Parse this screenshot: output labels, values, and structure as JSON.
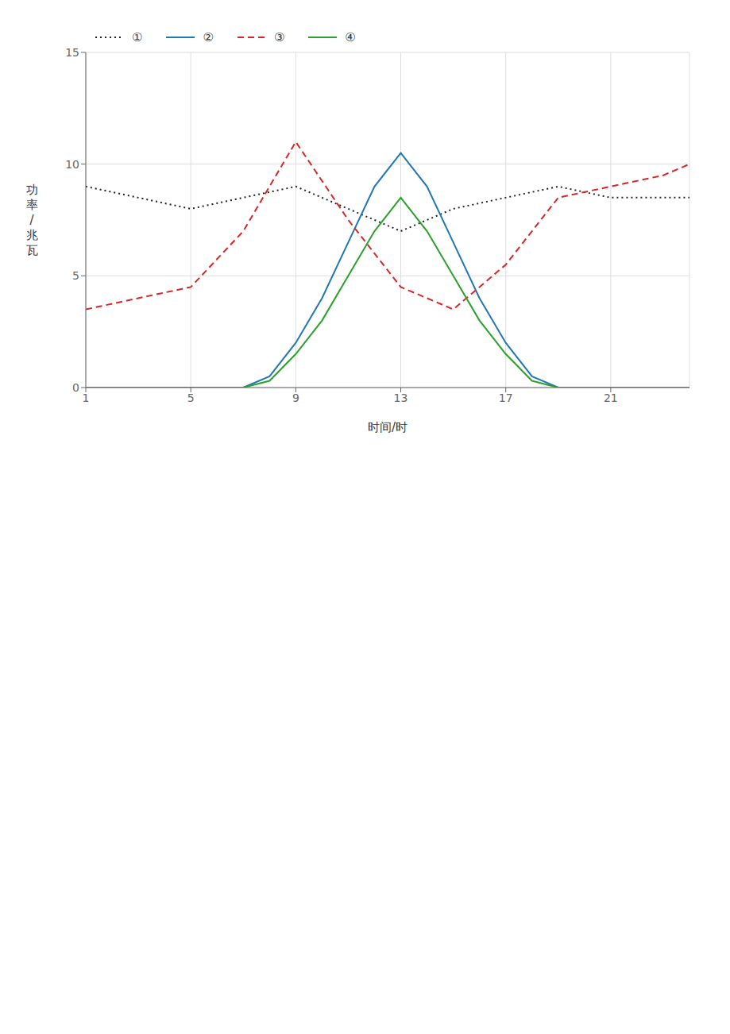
{
  "chart_data": {
    "type": "line",
    "xlabel": "时间/时",
    "ylabel": "功\n率\n/\n兆\n瓦",
    "xlim": [
      1,
      24
    ],
    "xticks": [
      1,
      5,
      9,
      13,
      17,
      21
    ],
    "ylim": [
      0,
      15
    ],
    "yticks": [
      0,
      5,
      10,
      15
    ],
    "grid": true,
    "legend": "upper left",
    "series": [
      {
        "name": "①",
        "color": "#222222",
        "line_style": "dotted",
        "x": [
          1,
          3,
          5,
          7,
          9,
          11,
          13,
          15,
          17,
          19,
          21,
          23,
          24
        ],
        "values": [
          9.0,
          8.5,
          8.0,
          8.5,
          9.0,
          8.0,
          7.0,
          8.0,
          8.5,
          9.0,
          8.5,
          8.5,
          8.5
        ]
      },
      {
        "name": "②",
        "color": "#1f77b4",
        "line_style": "solid",
        "x": [
          1,
          5,
          7,
          8,
          9,
          10,
          11,
          12,
          13,
          14,
          15,
          16,
          17,
          18,
          19,
          21,
          24
        ],
        "values": [
          0,
          0,
          0,
          0.5,
          2.0,
          4.0,
          6.5,
          9.0,
          10.5,
          9.0,
          6.5,
          4.0,
          2.0,
          0.5,
          0,
          0,
          0
        ]
      },
      {
        "name": "③",
        "color": "#d62728",
        "line_style": "dashed",
        "x": [
          1,
          3,
          5,
          7,
          9,
          11,
          13,
          15,
          17,
          19,
          21,
          23,
          24
        ],
        "values": [
          3.5,
          4.0,
          4.5,
          7.0,
          11.0,
          7.5,
          4.5,
          3.5,
          5.5,
          8.5,
          9.0,
          9.5,
          10.0
        ]
      },
      {
        "name": "④",
        "color": "#2ca02c",
        "line_style": "solid",
        "x": [
          1,
          5,
          7,
          8,
          9,
          10,
          11,
          12,
          13,
          14,
          15,
          16,
          17,
          18,
          19,
          21,
          24
        ],
        "values": [
          0,
          0,
          0,
          0.3,
          1.5,
          3.0,
          5.0,
          7.0,
          8.5,
          7.0,
          5.0,
          3.0,
          1.5,
          0.3,
          0,
          0,
          0
        ]
      }
    ]
  }
}
